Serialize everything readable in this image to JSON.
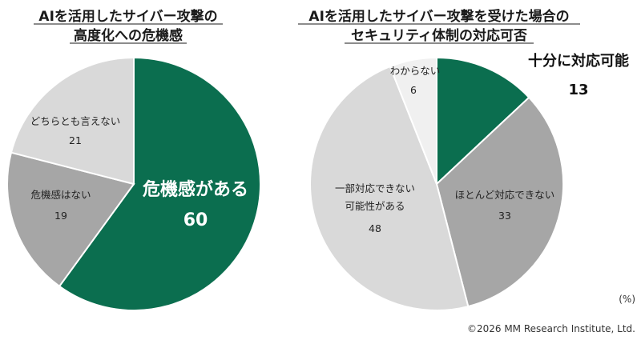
{
  "chart_data": [
    {
      "type": "pie",
      "title_lines": [
        "AIを活用したサイバー攻撃の",
        "高度化への危機感"
      ],
      "slices": [
        {
          "label": "危機感がある",
          "value": 60,
          "color": "#0b6e4f"
        },
        {
          "label": "危機感はない",
          "value": 19,
          "color": "#a6a6a6"
        },
        {
          "label": "どちらとも言えない",
          "value": 21,
          "color": "#d9d9d9"
        }
      ]
    },
    {
      "type": "pie",
      "title_lines": [
        "AIを活用したサイバー攻撃を受けた場合の",
        "セキュリティ体制の対応可否"
      ],
      "slices": [
        {
          "label": "十分に対応可能",
          "value": 13,
          "color": "#0b6e4f"
        },
        {
          "label": "ほとんど対応できない",
          "value": 33,
          "color": "#a6a6a6"
        },
        {
          "label": "一部対応できない可能性がある",
          "label_lines": [
            "一部対応できない",
            "可能性がある"
          ],
          "value": 48,
          "color": "#d9d9d9"
        },
        {
          "label": "わからない",
          "value": 6,
          "color": "#f0f0f0"
        }
      ]
    }
  ],
  "unit_note": "(%)",
  "copyright": "©2026 MM Research Institute, Ltd."
}
